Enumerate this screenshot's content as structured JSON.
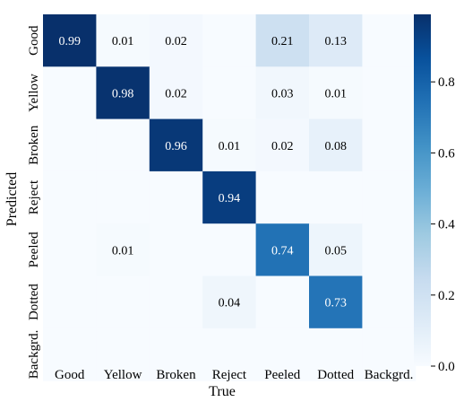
{
  "chart_data": {
    "type": "heatmap",
    "xlabel": "True",
    "ylabel": "Predicted",
    "x_categories": [
      "Good",
      "Yellow",
      "Broken",
      "Reject",
      "Peeled",
      "Dotted",
      "Backgrd."
    ],
    "y_categories": [
      "Good",
      "Yellow",
      "Broken",
      "Reject",
      "Peeled",
      "Dotted",
      "Backgrd."
    ],
    "values": [
      [
        0.99,
        0.01,
        0.02,
        null,
        0.21,
        0.13,
        null
      ],
      [
        null,
        0.98,
        0.02,
        null,
        0.03,
        0.01,
        null
      ],
      [
        null,
        null,
        0.96,
        0.01,
        0.02,
        0.08,
        null
      ],
      [
        null,
        null,
        null,
        0.94,
        null,
        null,
        null
      ],
      [
        null,
        0.01,
        null,
        null,
        0.74,
        0.05,
        null
      ],
      [
        null,
        null,
        null,
        0.04,
        null,
        0.73,
        null
      ],
      [
        null,
        null,
        null,
        null,
        null,
        null,
        null
      ]
    ],
    "zlim": [
      0,
      0.99
    ],
    "colorbar_ticks": [
      "0.0",
      "0.2",
      "0.4",
      "0.6",
      "0.8"
    ],
    "colorbar_tick_values": [
      0.0,
      0.2,
      0.4,
      0.6,
      0.8
    ],
    "colormap": [
      "#f7fbff",
      "#deebf7",
      "#c6dbef",
      "#9ecae1",
      "#6baed6",
      "#4292c6",
      "#2171b5",
      "#08519c",
      "#08306b"
    ],
    "grid": false
  }
}
